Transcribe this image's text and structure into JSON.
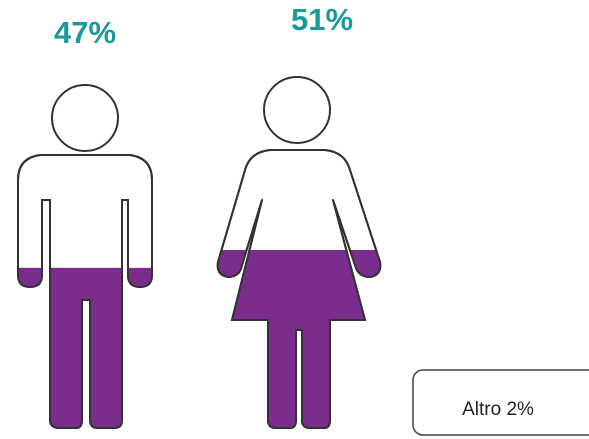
{
  "chart_data": {
    "type": "pictogram",
    "categories": [
      null,
      null
    ],
    "values": [
      47,
      51
    ],
    "value_labels": [
      "47%",
      "51%"
    ],
    "color": "#7b2d8e",
    "label_color": "#1a9a9a",
    "annotation": "Altro 2%"
  }
}
